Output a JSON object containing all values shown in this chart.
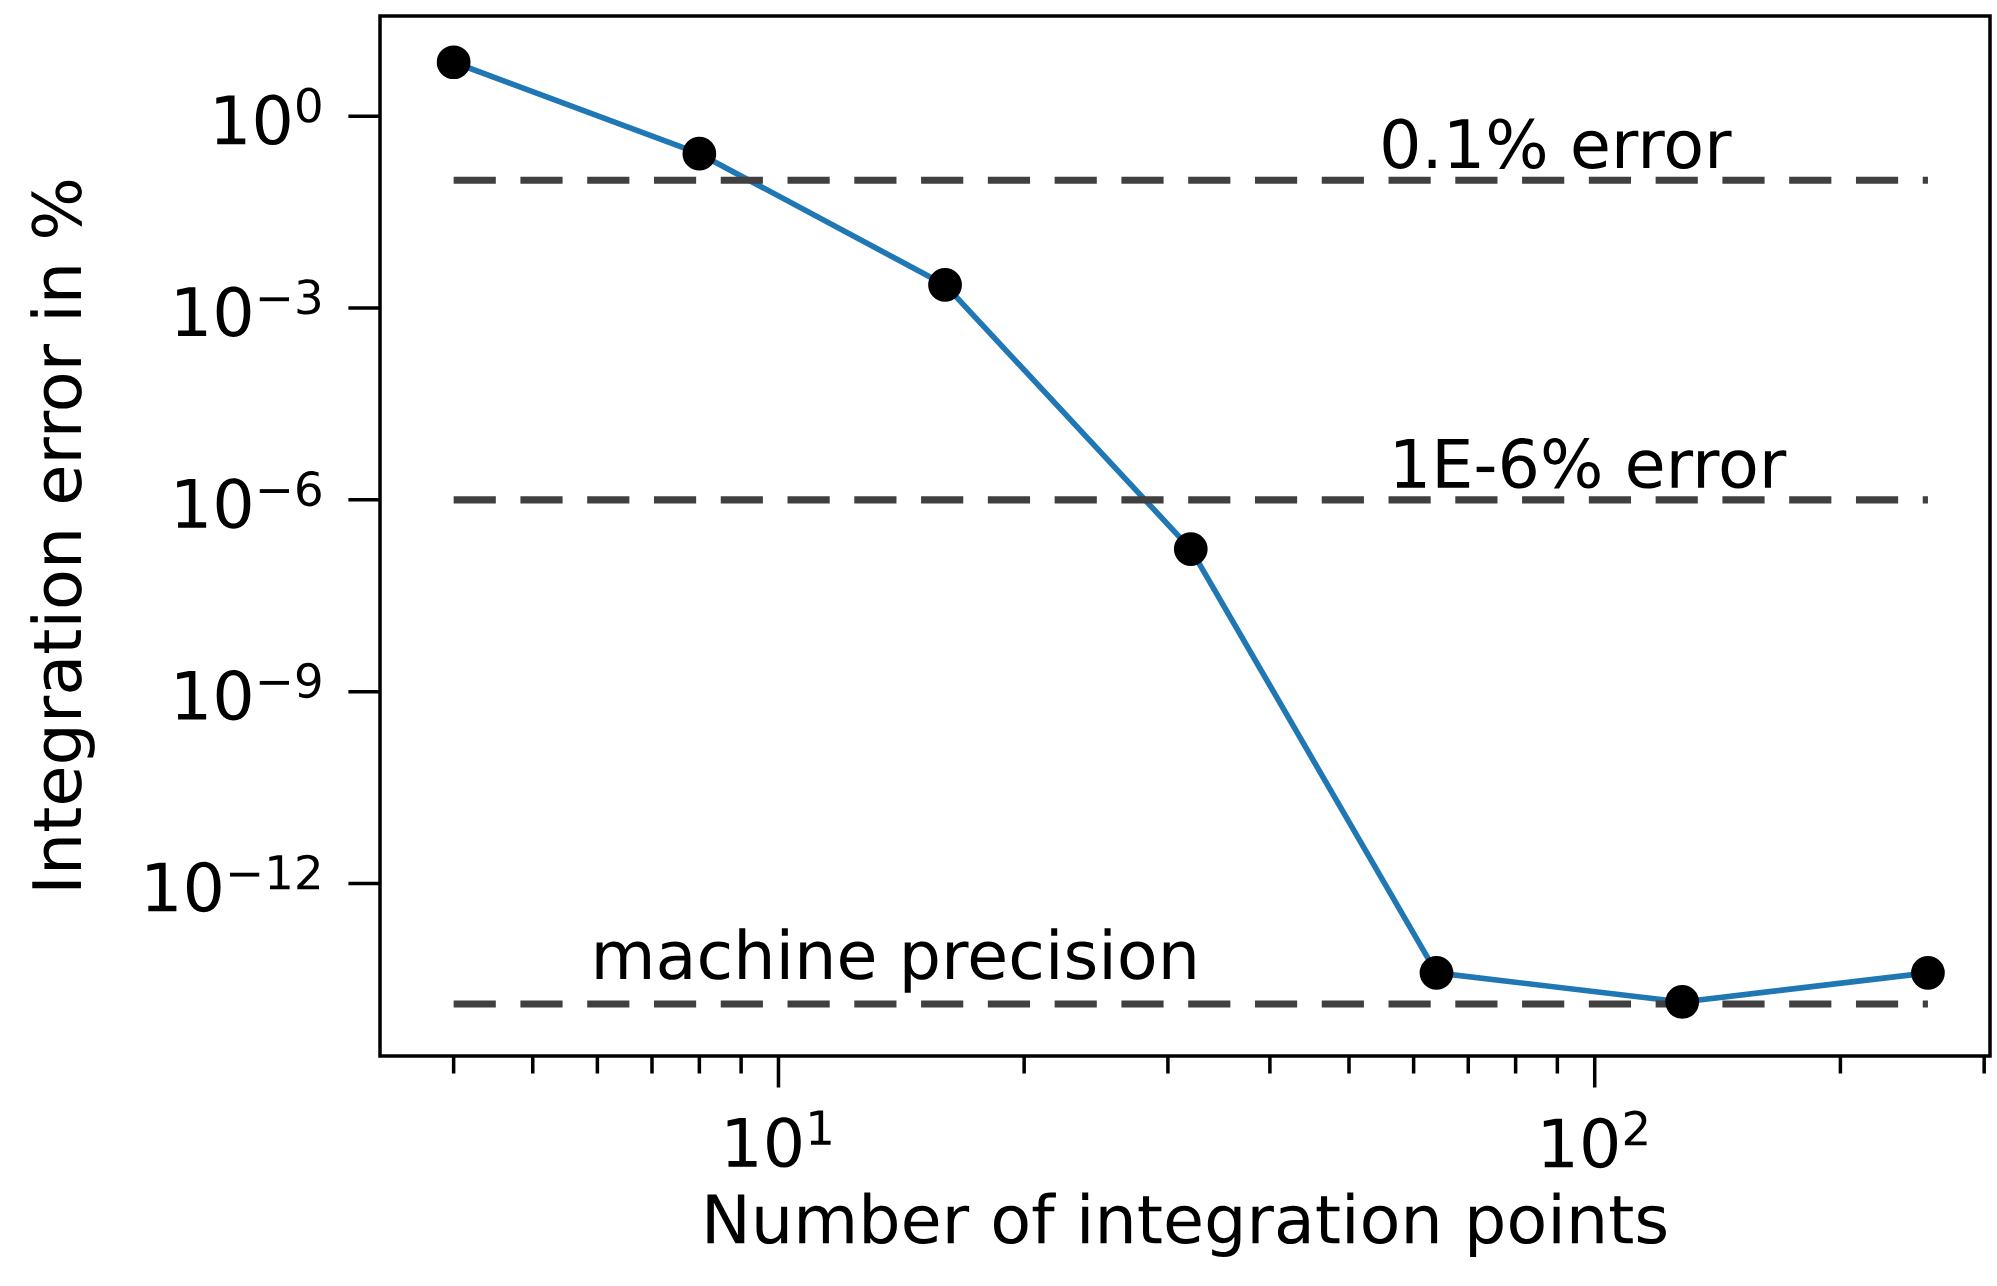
{
  "chart_data": {
    "type": "line",
    "xlabel": "Number of integration points",
    "ylabel": "Integration error in %",
    "x": [
      4,
      8,
      16,
      32,
      64,
      128,
      256
    ],
    "series": [
      {
        "color": "#1f77b4",
        "values": [
          7,
          0.26,
          0.0023,
          1.7e-07,
          4e-14,
          1.4e-14,
          4e-14
        ]
      }
    ],
    "marker": "circle",
    "line_style": "solid",
    "log": "xy",
    "grid": false,
    "xlim": [
      3.25,
      305
    ],
    "ylim": [
      2e-15,
      37
    ],
    "xticks": [
      {
        "value": 10,
        "label": "10$^{1}$"
      },
      {
        "value": 100,
        "label": "10$^{2}$"
      }
    ],
    "yticks": [
      {
        "value": 1,
        "label": "10$^{0}$"
      },
      {
        "value": 0.001,
        "label": "10$^{−3}$"
      },
      {
        "value": 1e-06,
        "label": "10$^{−6}$"
      },
      {
        "value": 1e-09,
        "label": "10$^{−9}$"
      },
      {
        "value": 1e-12,
        "label": "10$^{−12}$"
      }
    ],
    "ref_lines": [
      {
        "axis": "y",
        "value": 0.1,
        "label": "0.1% error",
        "color": "#404040",
        "line_style": "dashed"
      },
      {
        "axis": "y",
        "value": 1e-06,
        "label": "1E-6% error",
        "color": "#404040",
        "line_style": "dashed"
      },
      {
        "axis": "y",
        "value": 1.3e-14,
        "label": "machine precision",
        "color": "#404040",
        "line_style": "dashed"
      }
    ]
  }
}
